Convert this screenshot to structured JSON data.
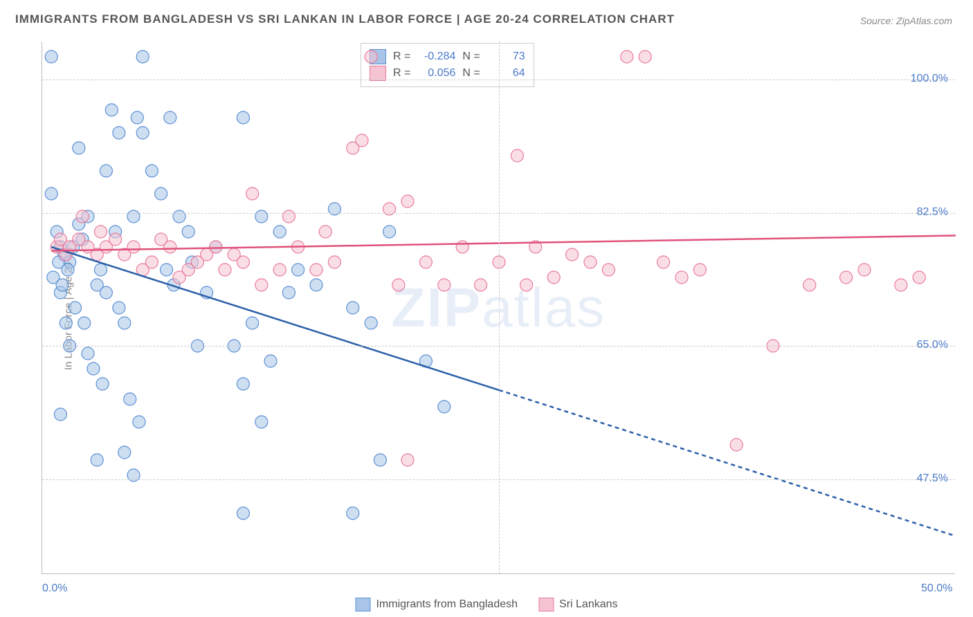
{
  "title": "IMMIGRANTS FROM BANGLADESH VS SRI LANKAN IN LABOR FORCE | AGE 20-24 CORRELATION CHART",
  "title_fontsize": 17,
  "source": "Source: ZipAtlas.com",
  "source_fontsize": 14,
  "watermark_text_a": "ZIP",
  "watermark_text_b": "atlas",
  "y_axis_label": "In Labor Force | Age 20-24",
  "y_axis_label_fontsize": 15,
  "series": {
    "bangladesh": {
      "label": "Immigrants from Bangladesh",
      "fill": "#a8c5e8",
      "stroke": "#5b8fd4",
      "line_color": "#2b5fa8",
      "r_label": "R = ",
      "r_value": "-0.284",
      "n_label": "N = ",
      "n_value": "73",
      "regression": {
        "x1": 0.5,
        "y1": 78,
        "x2": 50,
        "y2": 40,
        "solid_until_x": 25
      },
      "points": [
        {
          "x": 0.5,
          "y": 103
        },
        {
          "x": 5.5,
          "y": 103
        },
        {
          "x": 0.5,
          "y": 85
        },
        {
          "x": 0.8,
          "y": 80
        },
        {
          "x": 1.0,
          "y": 78
        },
        {
          "x": 1.2,
          "y": 77
        },
        {
          "x": 1.5,
          "y": 76
        },
        {
          "x": 2.0,
          "y": 81
        },
        {
          "x": 2.2,
          "y": 79
        },
        {
          "x": 2.5,
          "y": 82
        },
        {
          "x": 3.0,
          "y": 73
        },
        {
          "x": 3.2,
          "y": 75
        },
        {
          "x": 3.5,
          "y": 72
        },
        {
          "x": 4.0,
          "y": 80
        },
        {
          "x": 4.2,
          "y": 70
        },
        {
          "x": 4.5,
          "y": 68
        },
        {
          "x": 5.0,
          "y": 82
        },
        {
          "x": 5.2,
          "y": 95
        },
        {
          "x": 5.5,
          "y": 93
        },
        {
          "x": 6.0,
          "y": 88
        },
        {
          "x": 6.5,
          "y": 85
        },
        {
          "x": 7.0,
          "y": 95
        },
        {
          "x": 7.5,
          "y": 82
        },
        {
          "x": 8.0,
          "y": 80
        },
        {
          "x": 8.5,
          "y": 65
        },
        {
          "x": 2.8,
          "y": 62
        },
        {
          "x": 3.3,
          "y": 60
        },
        {
          "x": 4.8,
          "y": 58
        },
        {
          "x": 5.3,
          "y": 55
        },
        {
          "x": 1.8,
          "y": 70
        },
        {
          "x": 2.3,
          "y": 68
        },
        {
          "x": 11.0,
          "y": 95
        },
        {
          "x": 12.0,
          "y": 82
        },
        {
          "x": 13.0,
          "y": 80
        },
        {
          "x": 10.5,
          "y": 65
        },
        {
          "x": 11.5,
          "y": 68
        },
        {
          "x": 12.5,
          "y": 63
        },
        {
          "x": 16.0,
          "y": 83
        },
        {
          "x": 17.0,
          "y": 70
        },
        {
          "x": 18.0,
          "y": 68
        },
        {
          "x": 11.0,
          "y": 60
        },
        {
          "x": 12.0,
          "y": 55
        },
        {
          "x": 5.0,
          "y": 48
        },
        {
          "x": 11.0,
          "y": 43
        },
        {
          "x": 17.0,
          "y": 43
        },
        {
          "x": 18.5,
          "y": 50
        },
        {
          "x": 21.0,
          "y": 63
        },
        {
          "x": 22.0,
          "y": 57
        },
        {
          "x": 4.5,
          "y": 51
        },
        {
          "x": 1.0,
          "y": 56
        },
        {
          "x": 3.0,
          "y": 50
        },
        {
          "x": 1.5,
          "y": 65
        },
        {
          "x": 2.0,
          "y": 91
        },
        {
          "x": 3.5,
          "y": 88
        },
        {
          "x": 6.8,
          "y": 75
        },
        {
          "x": 7.2,
          "y": 73
        },
        {
          "x": 8.2,
          "y": 76
        },
        {
          "x": 9.0,
          "y": 72
        },
        {
          "x": 9.5,
          "y": 78
        },
        {
          "x": 3.8,
          "y": 96
        },
        {
          "x": 4.2,
          "y": 93
        },
        {
          "x": 1.0,
          "y": 72
        },
        {
          "x": 1.3,
          "y": 68
        },
        {
          "x": 2.5,
          "y": 64
        },
        {
          "x": 0.6,
          "y": 74
        },
        {
          "x": 0.9,
          "y": 76
        },
        {
          "x": 1.1,
          "y": 73
        },
        {
          "x": 1.4,
          "y": 75
        },
        {
          "x": 1.7,
          "y": 78
        },
        {
          "x": 14.0,
          "y": 75
        },
        {
          "x": 15.0,
          "y": 73
        },
        {
          "x": 19.0,
          "y": 80
        },
        {
          "x": 13.5,
          "y": 72
        }
      ]
    },
    "srilanka": {
      "label": "Sri Lankans",
      "fill": "#f5c3d1",
      "stroke": "#e87a9a",
      "line_color": "#e0517a",
      "r_label": "R = ",
      "r_value": "0.056",
      "n_label": "N = ",
      "n_value": "64",
      "regression": {
        "x1": 0.5,
        "y1": 77.5,
        "x2": 50,
        "y2": 79.5,
        "solid_until_x": 50
      },
      "points": [
        {
          "x": 0.8,
          "y": 78
        },
        {
          "x": 1.0,
          "y": 79
        },
        {
          "x": 1.3,
          "y": 77
        },
        {
          "x": 1.5,
          "y": 78
        },
        {
          "x": 2.0,
          "y": 79
        },
        {
          "x": 2.5,
          "y": 78
        },
        {
          "x": 3.0,
          "y": 77
        },
        {
          "x": 3.5,
          "y": 78
        },
        {
          "x": 4.0,
          "y": 79
        },
        {
          "x": 4.5,
          "y": 77
        },
        {
          "x": 5.0,
          "y": 78
        },
        {
          "x": 5.5,
          "y": 75
        },
        {
          "x": 6.0,
          "y": 76
        },
        {
          "x": 7.0,
          "y": 78
        },
        {
          "x": 8.0,
          "y": 75
        },
        {
          "x": 8.5,
          "y": 76
        },
        {
          "x": 9.0,
          "y": 77
        },
        {
          "x": 9.5,
          "y": 78
        },
        {
          "x": 10.0,
          "y": 75
        },
        {
          "x": 10.5,
          "y": 77
        },
        {
          "x": 11.0,
          "y": 76
        },
        {
          "x": 12.0,
          "y": 73
        },
        {
          "x": 13.0,
          "y": 75
        },
        {
          "x": 14.0,
          "y": 78
        },
        {
          "x": 15.0,
          "y": 75
        },
        {
          "x": 16.0,
          "y": 76
        },
        {
          "x": 17.0,
          "y": 91
        },
        {
          "x": 17.5,
          "y": 92
        },
        {
          "x": 18.0,
          "y": 103
        },
        {
          "x": 19.0,
          "y": 83
        },
        {
          "x": 20.0,
          "y": 84
        },
        {
          "x": 21.0,
          "y": 76
        },
        {
          "x": 20.0,
          "y": 50
        },
        {
          "x": 22.0,
          "y": 73
        },
        {
          "x": 23.0,
          "y": 78
        },
        {
          "x": 24.0,
          "y": 73
        },
        {
          "x": 25.0,
          "y": 76
        },
        {
          "x": 26.0,
          "y": 90
        },
        {
          "x": 27.0,
          "y": 78
        },
        {
          "x": 28.0,
          "y": 74
        },
        {
          "x": 30.0,
          "y": 76
        },
        {
          "x": 32.0,
          "y": 103
        },
        {
          "x": 33.0,
          "y": 103
        },
        {
          "x": 34.0,
          "y": 76
        },
        {
          "x": 35.0,
          "y": 74
        },
        {
          "x": 36.0,
          "y": 75
        },
        {
          "x": 38.0,
          "y": 52
        },
        {
          "x": 40.0,
          "y": 65
        },
        {
          "x": 42.0,
          "y": 73
        },
        {
          "x": 44.0,
          "y": 74
        },
        {
          "x": 45.0,
          "y": 75
        },
        {
          "x": 47.0,
          "y": 73
        },
        {
          "x": 48.0,
          "y": 74
        },
        {
          "x": 11.5,
          "y": 85
        },
        {
          "x": 13.5,
          "y": 82
        },
        {
          "x": 15.5,
          "y": 80
        },
        {
          "x": 2.2,
          "y": 82
        },
        {
          "x": 3.2,
          "y": 80
        },
        {
          "x": 6.5,
          "y": 79
        },
        {
          "x": 7.5,
          "y": 74
        },
        {
          "x": 19.5,
          "y": 73
        },
        {
          "x": 26.5,
          "y": 73
        },
        {
          "x": 29.0,
          "y": 77
        },
        {
          "x": 31.0,
          "y": 75
        }
      ]
    }
  },
  "axes": {
    "xlim": [
      0,
      50
    ],
    "ylim": [
      35,
      105
    ],
    "x_ticks": [
      {
        "v": 0,
        "label": "0.0%"
      },
      {
        "v": 50,
        "label": "50.0%"
      }
    ],
    "x_grid": [
      25
    ],
    "y_ticks": [
      {
        "v": 47.5,
        "label": "47.5%"
      },
      {
        "v": 65.0,
        "label": "65.0%"
      },
      {
        "v": 82.5,
        "label": "82.5%"
      },
      {
        "v": 100.0,
        "label": "100.0%"
      }
    ]
  },
  "marker_radius": 9,
  "marker_opacity": 0.55,
  "line_width": 2.5,
  "colors": {
    "background": "#ffffff",
    "grid": "#cccccc",
    "axis": "#bbbbbb",
    "tick_text": "#4a7bc8",
    "title_text": "#555555",
    "muted_text": "#888888"
  }
}
